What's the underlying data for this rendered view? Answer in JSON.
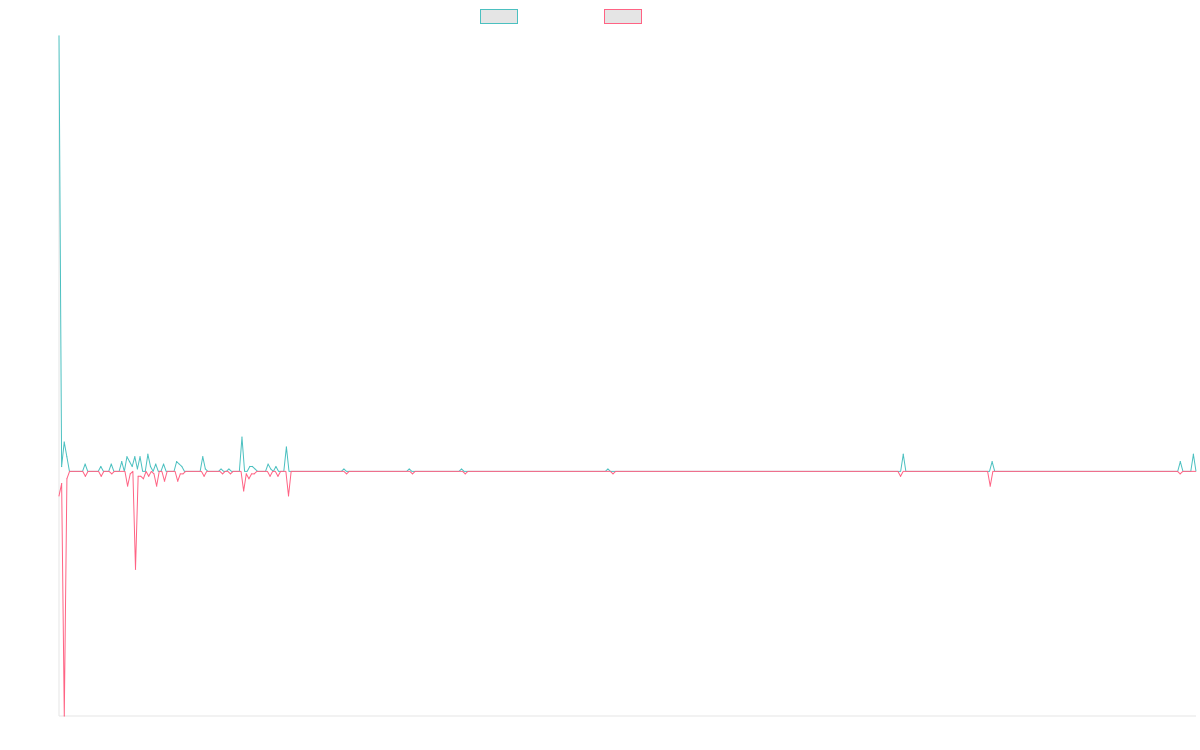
{
  "chart_data": {
    "type": "line",
    "title": "",
    "xlabel": "",
    "ylabel": "",
    "grid": false,
    "legend_placement": "top-center",
    "ylim": [
      -100,
      178
    ],
    "series": [
      {
        "color": "#4bc0c0",
        "values": [
          178,
          2,
          12,
          6,
          0,
          0,
          0,
          0,
          0,
          0,
          3,
          0,
          0,
          0,
          0,
          0,
          2,
          0,
          0,
          0,
          3,
          0,
          0,
          0,
          4,
          0,
          6,
          4,
          2,
          6,
          1,
          6,
          0,
          0,
          7,
          2,
          0,
          3,
          0,
          0,
          3,
          0,
          0,
          0,
          0,
          4,
          3,
          2,
          0,
          0,
          0,
          0,
          0,
          0,
          0,
          6,
          1,
          0,
          0,
          0,
          0,
          0,
          1,
          0,
          0,
          1,
          0,
          0,
          0,
          0,
          14,
          0,
          0,
          2,
          2,
          1,
          0,
          0,
          0,
          0,
          3,
          1,
          0,
          2,
          0,
          0,
          0,
          10,
          0,
          0,
          0,
          0,
          0,
          0,
          0,
          0,
          0,
          0,
          0,
          0,
          0,
          0,
          0,
          0,
          0,
          0,
          0,
          0,
          0,
          1,
          0,
          0,
          0,
          0,
          0,
          0,
          0,
          0,
          0,
          0,
          0,
          0,
          0,
          0,
          0,
          0,
          0,
          0,
          0,
          0,
          0,
          0,
          0,
          0,
          1,
          0,
          0,
          0,
          0,
          0,
          0,
          0,
          0,
          0,
          0,
          0,
          0,
          0,
          0,
          0,
          0,
          0,
          0,
          0,
          1,
          0,
          0,
          0,
          0,
          0,
          0,
          0,
          0,
          0,
          0,
          0,
          0,
          0,
          0,
          0,
          0,
          0,
          0,
          0,
          0,
          0,
          0,
          0,
          0,
          0,
          0,
          0,
          0,
          0,
          0,
          0,
          0,
          0,
          0,
          0,
          0,
          0,
          0,
          0,
          0,
          0,
          0,
          0,
          0,
          0,
          0,
          0,
          0,
          0,
          0,
          0,
          0,
          0,
          0,
          0,
          1,
          0,
          0,
          0,
          0,
          0,
          0,
          0,
          0,
          0,
          0,
          0,
          0,
          0,
          0,
          0,
          0,
          0,
          0,
          0,
          0,
          0,
          0,
          0,
          0,
          0,
          0,
          0,
          0,
          0,
          0,
          0,
          0,
          0,
          0,
          0,
          0,
          0,
          0,
          0,
          0,
          0,
          0,
          0,
          0,
          0,
          0,
          0,
          0,
          0,
          0,
          0,
          0,
          0,
          0,
          0,
          0,
          0,
          0,
          0,
          0,
          0,
          0,
          0,
          0,
          0,
          0,
          0,
          0,
          0,
          0,
          0,
          0,
          0,
          0,
          0,
          0,
          0,
          0,
          0,
          0,
          0,
          0,
          0,
          0,
          0,
          0,
          0,
          0,
          0,
          0,
          0,
          0,
          0,
          0,
          0,
          0,
          0,
          0,
          0,
          0,
          0,
          0,
          0,
          0,
          0,
          0,
          0,
          0,
          0,
          0,
          0,
          0,
          7,
          0,
          0,
          0,
          0,
          0,
          0,
          0,
          0,
          0,
          0,
          0,
          0,
          0,
          0,
          0,
          0,
          0,
          0,
          0,
          0,
          0,
          0,
          0,
          0,
          0,
          0,
          0,
          0,
          0,
          0,
          0,
          0,
          0,
          4,
          0,
          0,
          0,
          0,
          0,
          0,
          0,
          0,
          0,
          0,
          0,
          0,
          0,
          0,
          0,
          0,
          0,
          0,
          0,
          0,
          0,
          0,
          0,
          0,
          0,
          0,
          0,
          0,
          0,
          0,
          0,
          0,
          0,
          0,
          0,
          0,
          0,
          0,
          0,
          0,
          0,
          0,
          0,
          0,
          0,
          0,
          0,
          0,
          0,
          0,
          0,
          0,
          0,
          0,
          0,
          0,
          0,
          0,
          0,
          0,
          0,
          0,
          0,
          0,
          0,
          0,
          0,
          0,
          0,
          0,
          0,
          4,
          0,
          0,
          0,
          0,
          7,
          0
        ]
      },
      {
        "color": "#ff6384",
        "values": [
          -10,
          -5,
          -100,
          -3,
          0,
          0,
          0,
          0,
          0,
          0,
          -2,
          0,
          0,
          0,
          0,
          0,
          -2,
          0,
          0,
          0,
          -1,
          0,
          0,
          0,
          0,
          0,
          -6,
          -1,
          0,
          -40,
          -2,
          -2,
          -3,
          0,
          -2,
          0,
          -1,
          -6,
          0,
          0,
          -4,
          0,
          0,
          0,
          0,
          -4,
          -1,
          -1,
          0,
          0,
          0,
          0,
          0,
          0,
          0,
          -2,
          0,
          0,
          0,
          0,
          0,
          0,
          -1,
          0,
          0,
          -1,
          0,
          0,
          0,
          0,
          -8,
          -1,
          -3,
          -1,
          -1,
          0,
          0,
          0,
          0,
          0,
          -2,
          0,
          0,
          -2,
          0,
          0,
          0,
          -10,
          0,
          0,
          0,
          0,
          0,
          0,
          0,
          0,
          0,
          0,
          0,
          0,
          0,
          0,
          0,
          0,
          0,
          0,
          0,
          0,
          0,
          -1,
          0,
          0,
          0,
          0,
          0,
          0,
          0,
          0,
          0,
          0,
          0,
          0,
          0,
          0,
          0,
          0,
          0,
          0,
          0,
          0,
          0,
          0,
          0,
          0,
          -1,
          0,
          0,
          0,
          0,
          0,
          0,
          0,
          0,
          0,
          0,
          0,
          0,
          0,
          0,
          0,
          0,
          0,
          0,
          0,
          -1,
          0,
          0,
          0,
          0,
          0,
          0,
          0,
          0,
          0,
          0,
          0,
          0,
          0,
          0,
          0,
          0,
          0,
          0,
          0,
          0,
          0,
          0,
          0,
          0,
          0,
          0,
          0,
          0,
          0,
          0,
          0,
          0,
          0,
          0,
          0,
          0,
          0,
          0,
          0,
          0,
          0,
          0,
          0,
          0,
          0,
          0,
          0,
          0,
          0,
          0,
          0,
          0,
          0,
          0,
          0,
          -1,
          0,
          0,
          0,
          0,
          0,
          0,
          0,
          0,
          0,
          0,
          0,
          0,
          0,
          0,
          0,
          0,
          0,
          0,
          0,
          0,
          0,
          0,
          0,
          0,
          0,
          0,
          0,
          0,
          0,
          0,
          0,
          0,
          0,
          0,
          0,
          0,
          0,
          0,
          0,
          0,
          0,
          0,
          0,
          0,
          0,
          0,
          0,
          0,
          0,
          0,
          0,
          0,
          0,
          0,
          0,
          0,
          0,
          0,
          0,
          0,
          0,
          0,
          0,
          0,
          0,
          0,
          0,
          0,
          0,
          0,
          0,
          0,
          0,
          0,
          0,
          0,
          0,
          0,
          0,
          0,
          0,
          0,
          0,
          0,
          0,
          0,
          0,
          0,
          0,
          0,
          0,
          0,
          0,
          0,
          0,
          0,
          0,
          0,
          0,
          0,
          0,
          0,
          0,
          0,
          0,
          0,
          0,
          0,
          -2,
          0,
          0,
          0,
          0,
          0,
          0,
          0,
          0,
          0,
          0,
          0,
          0,
          0,
          0,
          0,
          0,
          0,
          0,
          0,
          0,
          0,
          0,
          0,
          0,
          0,
          0,
          0,
          0,
          0,
          0,
          0,
          0,
          0,
          -6,
          0,
          0,
          0,
          0,
          0,
          0,
          0,
          0,
          0,
          0,
          0,
          0,
          0,
          0,
          0,
          0,
          0,
          0,
          0,
          0,
          0,
          0,
          0,
          0,
          0,
          0,
          0,
          0,
          0,
          0,
          0,
          0,
          0,
          0,
          0,
          0,
          0,
          0,
          0,
          0,
          0,
          0,
          0,
          0,
          0,
          0,
          0,
          0,
          0,
          0,
          0,
          0,
          0,
          0,
          0,
          0,
          0,
          0,
          0,
          0,
          0,
          0,
          0,
          0,
          0,
          0,
          0,
          0,
          0,
          0,
          0,
          -1,
          0,
          0,
          0,
          0,
          0,
          0
        ]
      }
    ]
  }
}
